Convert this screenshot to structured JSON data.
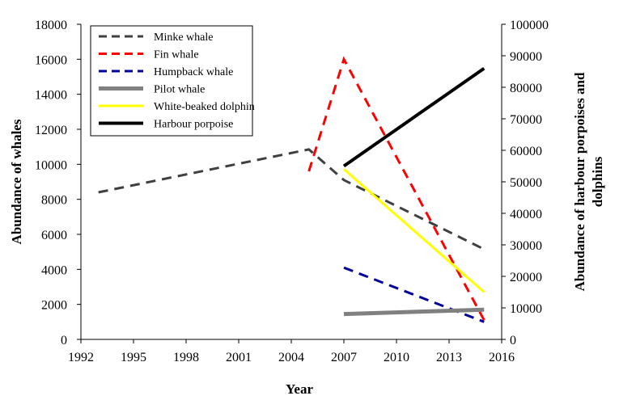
{
  "chart_data": {
    "type": "line",
    "xlabel": "Year",
    "ylabel_left": "Abundance of whales",
    "ylabel_right_lines": [
      "Abundance of harbour porpoises and",
      "dolphins"
    ],
    "xlim": [
      1992,
      2016
    ],
    "x_ticks": [
      1992,
      1995,
      1998,
      2001,
      2004,
      2007,
      2010,
      2013,
      2016
    ],
    "ylim_left": [
      0,
      18000
    ],
    "y_ticks_left": [
      0,
      2000,
      4000,
      6000,
      8000,
      10000,
      12000,
      14000,
      16000,
      18000
    ],
    "ylim_right": [
      0,
      100000
    ],
    "y_ticks_right": [
      0,
      10000,
      20000,
      30000,
      40000,
      50000,
      60000,
      70000,
      80000,
      90000,
      100000
    ],
    "grid": false,
    "legend_position": "top-left",
    "series": [
      {
        "name": "Minke whale",
        "axis": "left",
        "color": "#404040",
        "style": "dashed",
        "width": 3,
        "points": [
          [
            1993,
            8400
          ],
          [
            2005,
            10850
          ],
          [
            2007,
            9100
          ],
          [
            2015,
            5150
          ]
        ]
      },
      {
        "name": "Fin whale",
        "axis": "left",
        "color": "#ff0000",
        "style": "dashed",
        "width": 3,
        "points": [
          [
            2005,
            9600
          ],
          [
            2007,
            16000
          ],
          [
            2015,
            1100
          ]
        ]
      },
      {
        "name": "Humpback whale",
        "axis": "left",
        "color": "#000099",
        "style": "dashed",
        "width": 3,
        "points": [
          [
            2007,
            4100
          ],
          [
            2015,
            1000
          ]
        ]
      },
      {
        "name": "Pilot whale",
        "axis": "left",
        "color": "#808080",
        "style": "solid",
        "width": 5,
        "points": [
          [
            2007,
            1450
          ],
          [
            2015,
            1700
          ]
        ]
      },
      {
        "name": "White-beaked dolphin",
        "axis": "right",
        "color": "#ffff00",
        "style": "solid",
        "width": 3,
        "points": [
          [
            2007,
            54000
          ],
          [
            2015,
            15000
          ]
        ]
      },
      {
        "name": "Harbour porpoise",
        "axis": "right",
        "color": "#000000",
        "style": "solid",
        "width": 4,
        "points": [
          [
            2007,
            55000
          ],
          [
            2015,
            86000
          ]
        ]
      }
    ]
  }
}
